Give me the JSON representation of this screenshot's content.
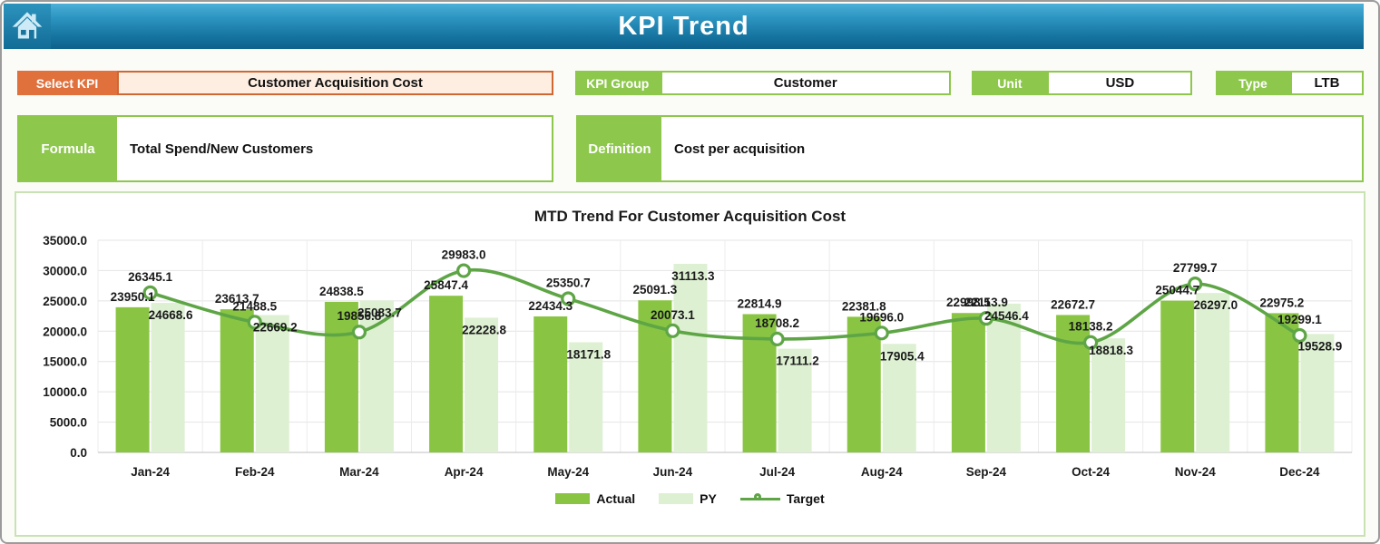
{
  "header": {
    "title": "KPI Trend"
  },
  "filters": {
    "select_kpi": {
      "label": "Select KPI",
      "value": "Customer Acquisition Cost"
    },
    "kpi_group": {
      "label": "KPI Group",
      "value": "Customer"
    },
    "unit": {
      "label": "Unit",
      "value": "USD"
    },
    "type": {
      "label": "Type",
      "value": "LTB"
    }
  },
  "formula": {
    "label": "Formula",
    "value": "Total Spend/New Customers"
  },
  "definition": {
    "label": "Definition",
    "value": "Cost per acquisition"
  },
  "chart_data": {
    "type": "combo",
    "title": "MTD Trend For Customer Acquisition Cost",
    "categories": [
      "Jan-24",
      "Feb-24",
      "Mar-24",
      "Apr-24",
      "May-24",
      "Jun-24",
      "Jul-24",
      "Aug-24",
      "Sep-24",
      "Oct-24",
      "Nov-24",
      "Dec-24"
    ],
    "series": [
      {
        "name": "Actual",
        "type": "bar",
        "color": "#89c543",
        "values": [
          23950.1,
          23613.7,
          24838.5,
          25847.4,
          22434.3,
          25091.3,
          22814.9,
          22381.8,
          22998.5,
          22672.7,
          25044.7,
          22975.2
        ]
      },
      {
        "name": "PY",
        "type": "bar",
        "color": "#ddf0d2",
        "values": [
          24668.6,
          22669.2,
          25083.7,
          22228.8,
          18171.8,
          31113.3,
          17111.2,
          17905.4,
          24546.4,
          18818.3,
          26297.0,
          19528.9
        ]
      },
      {
        "name": "Target",
        "type": "line",
        "color": "#5ea546",
        "values": [
          26345.1,
          21488.5,
          19856.8,
          29983.0,
          25350.7,
          20073.1,
          18708.2,
          19696.0,
          22113.9,
          18138.2,
          27799.7,
          19299.1
        ]
      }
    ],
    "ylim": [
      0,
      35000
    ],
    "ytick_step": 5000,
    "ytick_format_decimals": 1,
    "grid": true,
    "legend_position": "bottom"
  },
  "colors": {
    "header_top": "#4cb0d8",
    "header_bottom": "#0e618b",
    "accent_green": "#8dc74b",
    "accent_orange": "#e0703c",
    "kpi_field_bg": "#fdeee1",
    "chart_border": "#c9e2b4",
    "gridline": "#e4e4e4"
  }
}
